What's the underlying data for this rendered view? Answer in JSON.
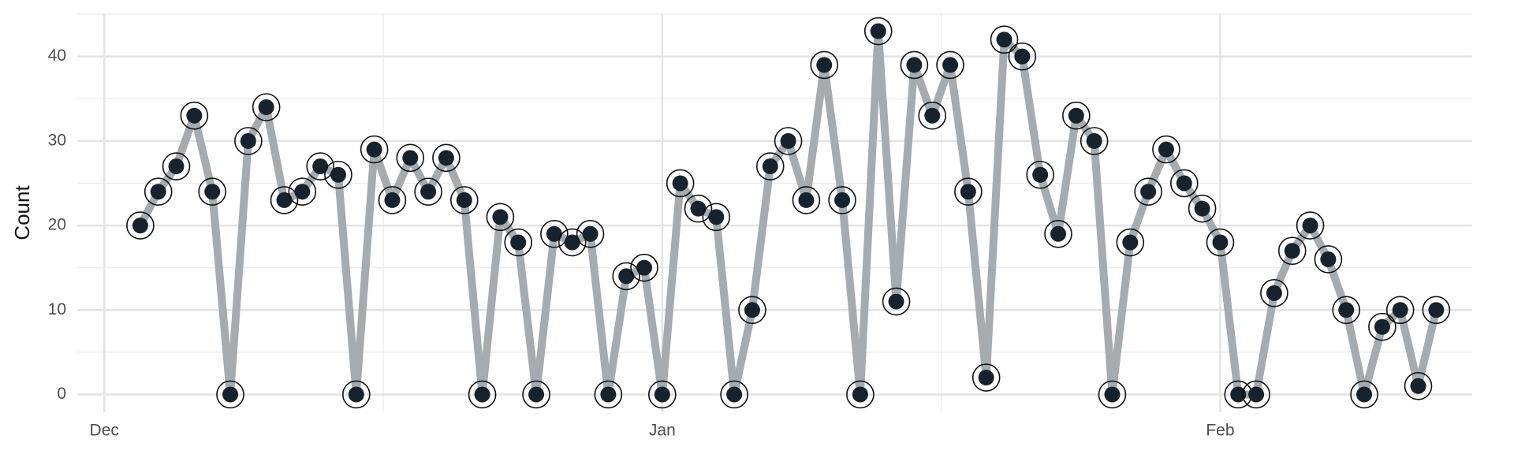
{
  "chart_data": {
    "type": "line",
    "y_label": "Count",
    "x": [
      2,
      3,
      4,
      5,
      6,
      7,
      8,
      9,
      10,
      11,
      12,
      13,
      14,
      15,
      16,
      17,
      18,
      19,
      20,
      21,
      22,
      23,
      24,
      25,
      26,
      27,
      28,
      29,
      30,
      31,
      32,
      33,
      34,
      35,
      36,
      37,
      38,
      39,
      40,
      41,
      42,
      43,
      44,
      45,
      46,
      47,
      48,
      49,
      50,
      51,
      52,
      53,
      54,
      55,
      56,
      57,
      58,
      59,
      60,
      61,
      62,
      63,
      64,
      65,
      66,
      67,
      68,
      69,
      70,
      71,
      72,
      73,
      74
    ],
    "values": [
      20,
      24,
      27,
      33,
      24,
      0,
      30,
      34,
      23,
      24,
      27,
      26,
      0,
      29,
      23,
      28,
      24,
      28,
      23,
      0,
      21,
      18,
      0,
      19,
      18,
      19,
      0,
      14,
      15,
      0,
      25,
      22,
      21,
      0,
      10,
      27,
      30,
      23,
      39,
      23,
      0,
      43,
      11,
      39,
      33,
      39,
      24,
      2,
      42,
      40,
      26,
      19,
      33,
      30,
      0,
      18,
      24,
      29,
      25,
      22,
      18,
      0,
      0,
      12,
      17,
      20,
      16,
      10,
      0,
      8,
      10,
      1,
      10
    ],
    "line_color": "#a5abaf",
    "point_color": "#16232e",
    "xlim": [
      -1.5,
      76
    ],
    "ylim": [
      -2.1,
      45.1
    ],
    "xticks": [
      {
        "value": 0,
        "label": "Dec"
      },
      {
        "value": 31,
        "label": "Jan"
      },
      {
        "value": 62,
        "label": "Feb"
      }
    ],
    "yticks": [
      0,
      10,
      20,
      30,
      40
    ],
    "grid": true,
    "minor_grid": true
  }
}
